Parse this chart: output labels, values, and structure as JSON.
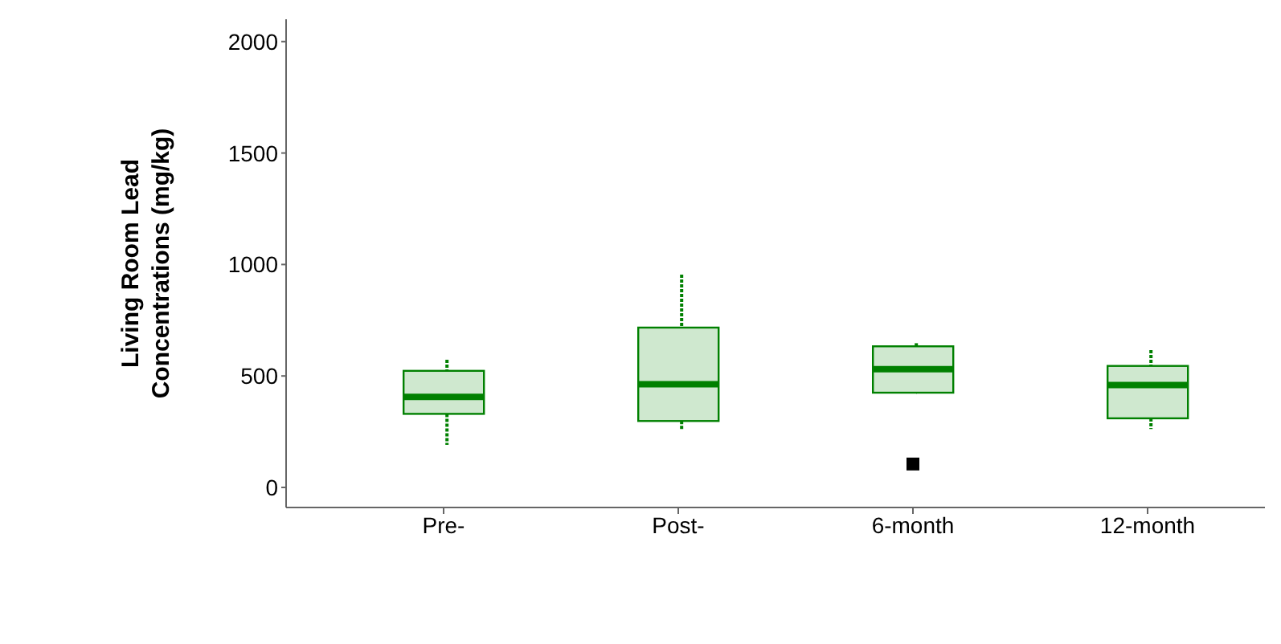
{
  "chart_data": {
    "type": "box",
    "ylabel": "Living Room Lead Concentrations (mg/kg)",
    "categories": [
      "Pre-",
      "Post-",
      "6-month",
      "12-month"
    ],
    "color": "#008000",
    "ylim": [
      -90,
      2100
    ],
    "yticks": [
      0,
      500,
      1000,
      1500,
      2000
    ],
    "grid": false,
    "legend": false,
    "boxes": [
      {
        "low": 191,
        "q1": 330,
        "median": 406,
        "q3": 523,
        "high": 573
      },
      {
        "low": 262,
        "q1": 298,
        "median": 463,
        "q3": 717,
        "high": 955
      },
      {
        "low": 425,
        "q1": 425,
        "median": 530,
        "q3": 633,
        "high": 647,
        "outliers": [
          105
        ]
      },
      {
        "low": 262,
        "q1": 310,
        "median": 459,
        "q3": 545,
        "high": 616
      }
    ]
  }
}
